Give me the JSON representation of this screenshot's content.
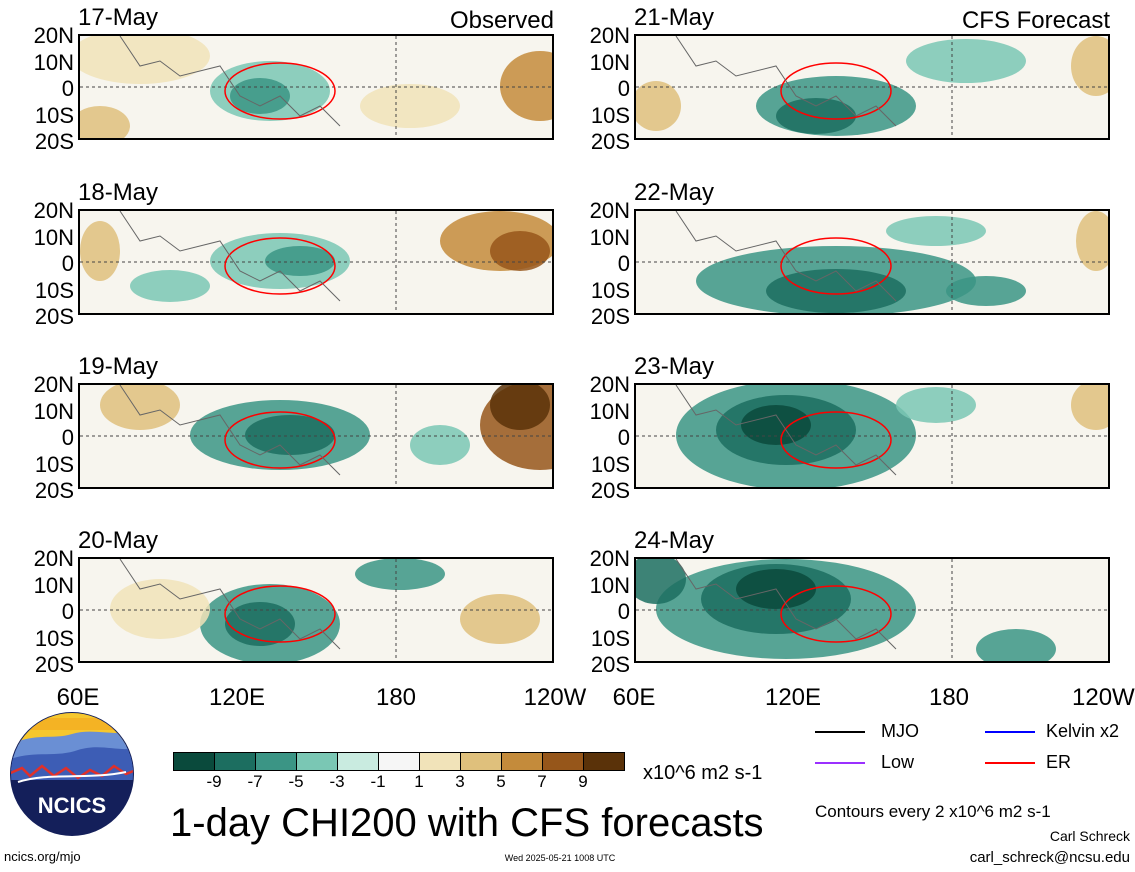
{
  "chart_data": {
    "type": "heatmap",
    "title": "1-day CHI200 with CFS forecasts",
    "panel_groups": {
      "left": "Observed",
      "right": "CFS Forecast"
    },
    "panels": [
      {
        "date": "17-May",
        "source": "Observed"
      },
      {
        "date": "18-May",
        "source": "Observed"
      },
      {
        "date": "19-May",
        "source": "Observed"
      },
      {
        "date": "20-May",
        "source": "Observed"
      },
      {
        "date": "21-May",
        "source": "CFS Forecast"
      },
      {
        "date": "22-May",
        "source": "CFS Forecast"
      },
      {
        "date": "23-May",
        "source": "CFS Forecast"
      },
      {
        "date": "24-May",
        "source": "CFS Forecast"
      }
    ],
    "y_ticks": [
      "20N",
      "10N",
      "0",
      "10S",
      "20S"
    ],
    "x_ticks_left": [
      "60E",
      "120E",
      "180",
      "120W"
    ],
    "x_ticks_right": [
      "60E",
      "120E",
      "180",
      "120W"
    ],
    "colorbar": {
      "levels": [
        "-9",
        "-7",
        "-5",
        "-3",
        "-1",
        "1",
        "3",
        "5",
        "7",
        "9"
      ],
      "colors": [
        "#0a4a3c",
        "#1c6e60",
        "#3b9585",
        "#7ac7b4",
        "#c9ebe0",
        "#f6f6f6",
        "#f1e3b9",
        "#dfc07c",
        "#c48b3b",
        "#96561a",
        "#5a3209"
      ],
      "units": "x10^6 m2 s-1"
    },
    "legend": [
      {
        "label": "MJO",
        "color": "#000000"
      },
      {
        "label": "Kelvin x2",
        "color": "#0000ff"
      },
      {
        "label": "Low",
        "color": "#9b30ff"
      },
      {
        "label": "ER",
        "color": "#ff0000"
      }
    ],
    "contour_note": "Contours every 2 x10^6 m2 s-1"
  },
  "footer": {
    "url": "ncics.org/mjo",
    "timestamp": "Wed 2025-05-21 1008 UTC",
    "author": "Carl Schreck",
    "email": "carl_schreck@ncsu.edu",
    "logo_text": "NCICS"
  }
}
